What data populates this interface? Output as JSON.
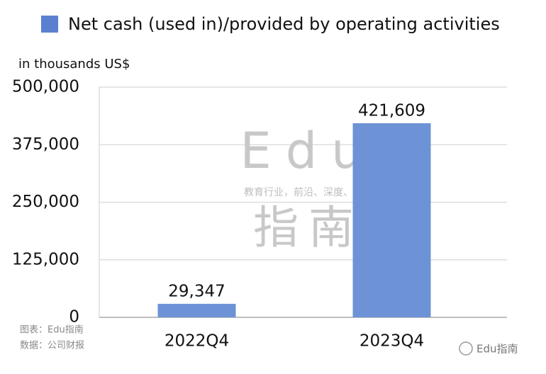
{
  "chart_data": {
    "type": "bar",
    "legend_label": "Net cash (used in)/provided by operating activities",
    "y_axis_label": "in thousands US$",
    "categories": [
      "2022Q4",
      "2023Q4"
    ],
    "values": [
      29347,
      421609
    ],
    "value_labels": [
      "29,347",
      "421,609"
    ],
    "color": "#6d93d6",
    "ylim": [
      0,
      500000
    ],
    "yticks": [
      0,
      {
        "value": 125000,
        "label": "125,000"
      },
      {
        "value": 250000,
        "label": "250,000"
      },
      {
        "value": 375000,
        "label": "375,000"
      },
      {
        "value": 500000,
        "label": "500,000"
      }
    ],
    "grid": true,
    "watermark": [
      "Edu",
      "教育行业，前沿、深度、独家",
      "指南"
    ],
    "notes": [
      "图表：Edu指南",
      "数据：公司财报"
    ],
    "brand": "Edu指南"
  }
}
